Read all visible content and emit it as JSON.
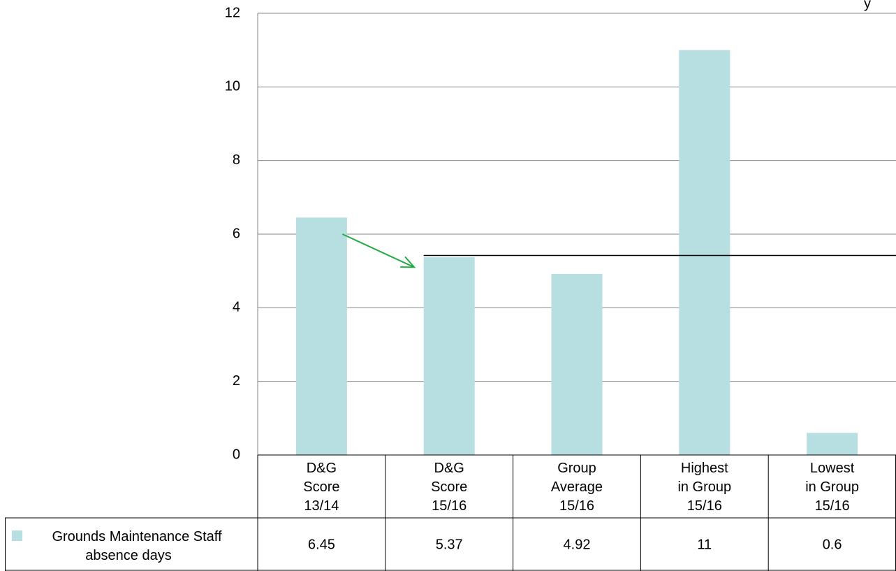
{
  "chart_data": {
    "type": "bar",
    "title_fragment": "y",
    "categories": [
      [
        "D&G",
        "Score",
        "13/14"
      ],
      [
        "D&G",
        "Score",
        "15/16"
      ],
      [
        "Group",
        "Average",
        "15/16"
      ],
      [
        "Highest",
        "in Group",
        "15/16"
      ],
      [
        "Lowest",
        "in Group",
        "15/16"
      ]
    ],
    "series": [
      {
        "name": [
          "Grounds Maintenance Staff",
          "absence days"
        ],
        "values": [
          6.45,
          5.37,
          4.92,
          11,
          0.6
        ],
        "value_labels": [
          "6.45",
          "5.37",
          "4.92",
          "11",
          "0.6"
        ],
        "color": "#b7dee0"
      }
    ],
    "yticks": [
      "0",
      "2",
      "4",
      "6",
      "8",
      "10",
      "12"
    ],
    "ylim": [
      0,
      12
    ],
    "grid": true,
    "reference_line": {
      "value": 5.42,
      "from_category": 1
    },
    "annotation_arrow": {
      "from": {
        "category": 0,
        "value": 6.0
      },
      "to": {
        "category": 1,
        "value": 5.1
      },
      "color": "#22aa44"
    },
    "data_table": true,
    "legend": "in-data-table"
  }
}
